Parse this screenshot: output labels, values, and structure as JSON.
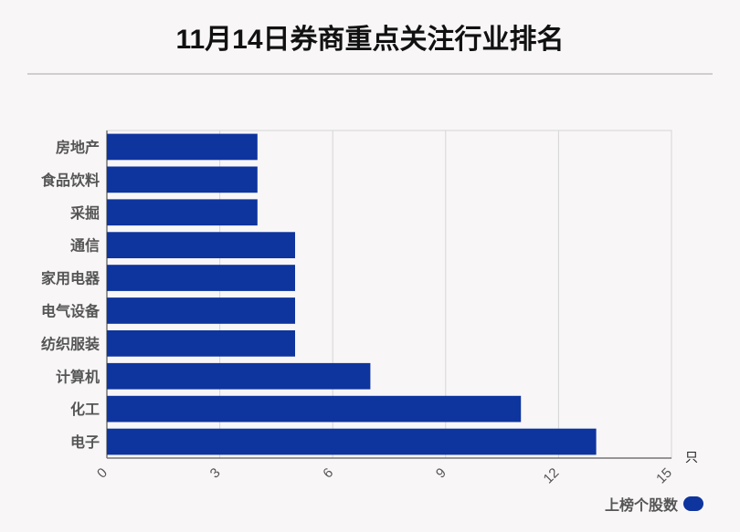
{
  "title": "11月14日券商重点关注行业排名",
  "unit": "只",
  "colors": {
    "bar": "#0e349d",
    "grid": "#d6d6d6",
    "axis": "#555555",
    "label": "#555555"
  },
  "chart_data": {
    "type": "bar",
    "orientation": "horizontal",
    "title": "11月14日券商重点关注行业排名",
    "categories": [
      "房地产",
      "食品饮料",
      "采掘",
      "通信",
      "家用电器",
      "电气设备",
      "纺织服装",
      "计算机",
      "化工",
      "电子"
    ],
    "series": [
      {
        "name": "上榜个股数",
        "values": [
          4,
          4,
          4,
          5,
          5,
          5,
          5,
          7,
          11,
          13
        ]
      }
    ],
    "xlim": [
      0,
      15
    ],
    "xticks": [
      "0",
      "3",
      "6",
      "9",
      "12",
      "15"
    ],
    "xlabel": "只",
    "grid": true,
    "legend_position": "bottom-right"
  }
}
